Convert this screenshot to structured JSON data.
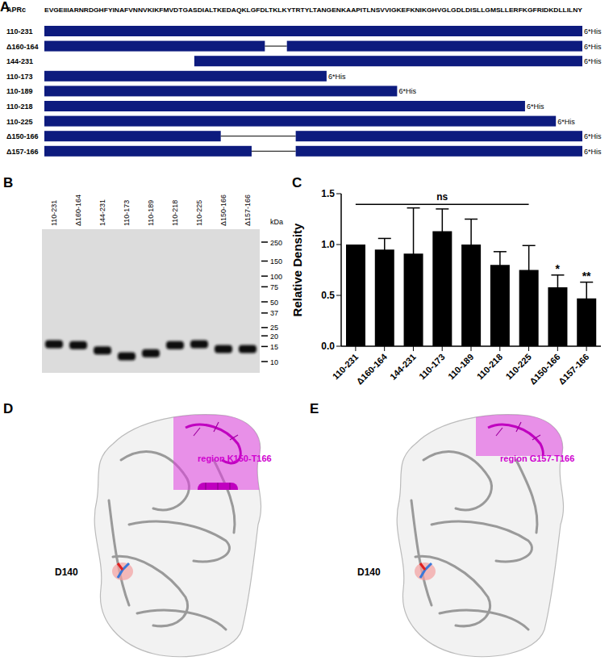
{
  "panels": [
    "A",
    "B",
    "C",
    "D",
    "E"
  ],
  "panel_a": {
    "reference": {
      "label": "APRc",
      "sequence": "EVGEIIIARNRDGHFYINAFVNNVKIKFMVDTGASDIALTKEDAQKLGFDLTKLKYTRTYLTANGENKAAPITLNSVVIGKEFKNIKGHVGLGDLDISLLGMSLLERFKGFRIDKDLLILNY",
      "start": 110,
      "end": 231
    },
    "tag": "6*His",
    "color": "#0d1b7e",
    "constructs": [
      {
        "label": "110-231",
        "start": 110,
        "end": 231
      },
      {
        "label": "Δ160-164",
        "start": 110,
        "end": 231,
        "deleted": [
          160,
          164
        ]
      },
      {
        "label": "144-231",
        "start": 144,
        "end": 231
      },
      {
        "label": "110-173",
        "start": 110,
        "end": 173
      },
      {
        "label": "110-189",
        "start": 110,
        "end": 189
      },
      {
        "label": "110-218",
        "start": 110,
        "end": 218
      },
      {
        "label": "110-225",
        "start": 110,
        "end": 225
      },
      {
        "label": "Δ150-166",
        "start": 110,
        "end": 231,
        "deleted": [
          150,
          166
        ]
      },
      {
        "label": "Δ157-166",
        "start": 110,
        "end": 231,
        "deleted": [
          157,
          166
        ]
      }
    ]
  },
  "panel_b": {
    "lanes": [
      "110-231",
      "Δ160-164",
      "144-231",
      "110-173",
      "110-189",
      "110-218",
      "110-225",
      "Δ150-166",
      "Δ157-166"
    ],
    "band_kda": [
      16,
      15.5,
      13.5,
      11.5,
      12.5,
      15.5,
      16,
      14,
      14
    ],
    "ladder": [
      250,
      150,
      100,
      75,
      50,
      37,
      25,
      20,
      15,
      10
    ],
    "ladder_unit": "kDa"
  },
  "chart_data": {
    "type": "bar",
    "y_label": "Relative Density",
    "categories": [
      "110-231",
      "Δ160-164",
      "144-231",
      "110-173",
      "110-189",
      "110-218",
      "110-225",
      "Δ150-166",
      "Δ157-166"
    ],
    "values": [
      1.0,
      0.95,
      0.91,
      1.13,
      1.0,
      0.8,
      0.75,
      0.58,
      0.47
    ],
    "errors": [
      0,
      0.11,
      0.45,
      0.22,
      0.25,
      0.13,
      0.24,
      0.12,
      0.16
    ],
    "significance": [
      null,
      null,
      null,
      null,
      null,
      null,
      null,
      "*",
      "**"
    ],
    "bracket": {
      "text": "ns",
      "from": 0,
      "to": 6
    },
    "color": "#000000",
    "ylim": [
      0,
      1.5
    ],
    "yticks": [
      {
        "value": 0,
        "label": "0.0"
      },
      0.5,
      {
        "value": 1,
        "label": "1.0"
      },
      1.5
    ],
    "grid": false
  },
  "panel_d": {
    "region_label": "region K150-T166",
    "region": [
      150,
      166
    ],
    "residue_label": "D140"
  },
  "panel_e": {
    "region_label": "region G157-T166",
    "region": [
      157,
      166
    ],
    "residue_label": "D140"
  }
}
